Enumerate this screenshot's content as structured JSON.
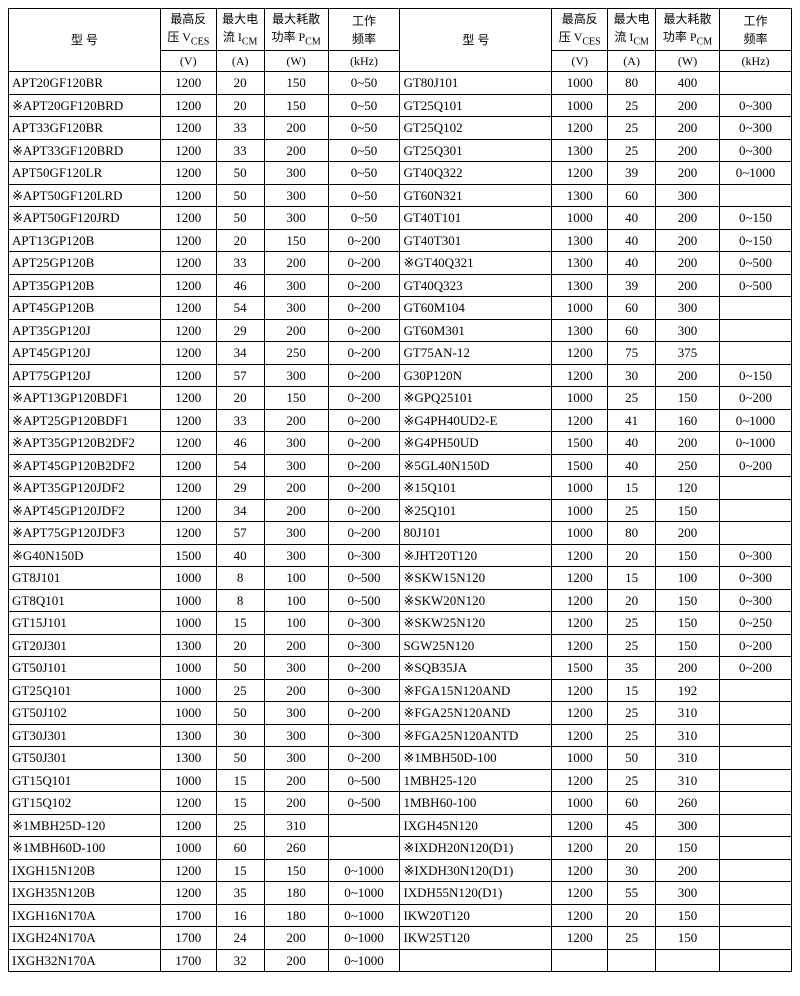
{
  "table": {
    "header": {
      "model_label": "型 号",
      "vces_line1": "最高反",
      "vces_line2": "压 V",
      "vces_sub": "CES",
      "icm_line1": "最大电",
      "icm_line2": "流 I",
      "icm_sub": "CM",
      "pcm_line1": "最大耗散",
      "pcm_line2": "功率 P",
      "pcm_sub": "CM",
      "freq_line1": "工作",
      "freq_line2": "频率",
      "unit_v": "(V)",
      "unit_a": "(A)",
      "unit_w": "(W)",
      "unit_khz": "(kHz)"
    },
    "body": [
      {
        "l": {
          "m": "APT20GF120BR",
          "v": "1200",
          "a": "20",
          "w": "150",
          "f": "0~50"
        },
        "r": {
          "m": "GT80J101",
          "v": "1000",
          "a": "80",
          "w": "400",
          "f": ""
        }
      },
      {
        "l": {
          "m": "※APT20GF120BRD",
          "v": "1200",
          "a": "20",
          "w": "150",
          "f": "0~50"
        },
        "r": {
          "m": "GT25Q101",
          "v": "1000",
          "a": "25",
          "w": "200",
          "f": "0~300"
        }
      },
      {
        "l": {
          "m": "APT33GF120BR",
          "v": "1200",
          "a": "33",
          "w": "200",
          "f": "0~50"
        },
        "r": {
          "m": "GT25Q102",
          "v": "1200",
          "a": "25",
          "w": "200",
          "f": "0~300"
        }
      },
      {
        "l": {
          "m": "※APT33GF120BRD",
          "v": "1200",
          "a": "33",
          "w": "200",
          "f": "0~50"
        },
        "r": {
          "m": "GT25Q301",
          "v": "1300",
          "a": "25",
          "w": "200",
          "f": "0~300"
        }
      },
      {
        "l": {
          "m": "APT50GF120LR",
          "v": "1200",
          "a": "50",
          "w": "300",
          "f": "0~50"
        },
        "r": {
          "m": "GT40Q322",
          "v": "1200",
          "a": "39",
          "w": "200",
          "f": "0~1000"
        }
      },
      {
        "l": {
          "m": "※APT50GF120LRD",
          "v": "1200",
          "a": "50",
          "w": "300",
          "f": "0~50"
        },
        "r": {
          "m": "GT60N321",
          "v": "1300",
          "a": "60",
          "w": "300",
          "f": ""
        }
      },
      {
        "l": {
          "m": "※APT50GF120JRD",
          "v": "1200",
          "a": "50",
          "w": "300",
          "f": "0~50"
        },
        "r": {
          "m": "GT40T101",
          "v": "1000",
          "a": "40",
          "w": "200",
          "f": "0~150"
        }
      },
      {
        "l": {
          "m": "APT13GP120B",
          "v": "1200",
          "a": "20",
          "w": "150",
          "f": "0~200"
        },
        "r": {
          "m": "GT40T301",
          "v": "1300",
          "a": "40",
          "w": "200",
          "f": "0~150"
        }
      },
      {
        "l": {
          "m": "APT25GP120B",
          "v": "1200",
          "a": "33",
          "w": "200",
          "f": "0~200"
        },
        "r": {
          "m": "※GT40Q321",
          "v": "1300",
          "a": "40",
          "w": "200",
          "f": "0~500"
        }
      },
      {
        "l": {
          "m": "APT35GP120B",
          "v": "1200",
          "a": "46",
          "w": "300",
          "f": "0~200"
        },
        "r": {
          "m": "GT40Q323",
          "v": "1300",
          "a": "39",
          "w": "200",
          "f": "0~500"
        }
      },
      {
        "l": {
          "m": "APT45GP120B",
          "v": "1200",
          "a": "54",
          "w": "300",
          "f": "0~200"
        },
        "r": {
          "m": "GT60M104",
          "v": "1000",
          "a": "60",
          "w": "300",
          "f": ""
        }
      },
      {
        "l": {
          "m": "APT35GP120J",
          "v": "1200",
          "a": "29",
          "w": "200",
          "f": "0~200"
        },
        "r": {
          "m": "GT60M301",
          "v": "1300",
          "a": "60",
          "w": "300",
          "f": ""
        }
      },
      {
        "l": {
          "m": "APT45GP120J",
          "v": "1200",
          "a": "34",
          "w": "250",
          "f": "0~200"
        },
        "r": {
          "m": "GT75AN-12",
          "v": "1200",
          "a": "75",
          "w": "375",
          "f": ""
        }
      },
      {
        "l": {
          "m": "APT75GP120J",
          "v": "1200",
          "a": "57",
          "w": "300",
          "f": "0~200"
        },
        "r": {
          "m": "G30P120N",
          "v": "1200",
          "a": "30",
          "w": "200",
          "f": "0~150"
        }
      },
      {
        "l": {
          "m": "※APT13GP120BDF1",
          "v": "1200",
          "a": "20",
          "w": "150",
          "f": "0~200"
        },
        "r": {
          "m": "※GPQ25101",
          "v": "1000",
          "a": "25",
          "w": "150",
          "f": "0~200"
        }
      },
      {
        "l": {
          "m": "※APT25GP120BDF1",
          "v": "1200",
          "a": "33",
          "w": "200",
          "f": "0~200"
        },
        "r": {
          "m": "※G4PH40UD2-E",
          "v": "1200",
          "a": "41",
          "w": "160",
          "f": "0~1000"
        }
      },
      {
        "l": {
          "m": "※APT35GP120B2DF2",
          "v": "1200",
          "a": "46",
          "w": "300",
          "f": "0~200"
        },
        "r": {
          "m": "※G4PH50UD",
          "v": "1500",
          "a": "40",
          "w": "200",
          "f": "0~1000"
        }
      },
      {
        "l": {
          "m": "※APT45GP120B2DF2",
          "v": "1200",
          "a": "54",
          "w": "300",
          "f": "0~200"
        },
        "r": {
          "m": "※5GL40N150D",
          "v": "1500",
          "a": "40",
          "w": "250",
          "f": "0~200"
        }
      },
      {
        "l": {
          "m": "※APT35GP120JDF2",
          "v": "1200",
          "a": "29",
          "w": "200",
          "f": "0~200"
        },
        "r": {
          "m": "※15Q101",
          "v": "1000",
          "a": "15",
          "w": "120",
          "f": ""
        }
      },
      {
        "l": {
          "m": "※APT45GP120JDF2",
          "v": "1200",
          "a": "34",
          "w": "200",
          "f": "0~200"
        },
        "r": {
          "m": "※25Q101",
          "v": "1000",
          "a": "25",
          "w": "150",
          "f": ""
        }
      },
      {
        "l": {
          "m": "※APT75GP120JDF3",
          "v": "1200",
          "a": "57",
          "w": "300",
          "f": "0~200"
        },
        "r": {
          "m": "80J101",
          "v": "1000",
          "a": "80",
          "w": "200",
          "f": ""
        }
      },
      {
        "l": {
          "m": "※G40N150D",
          "v": "1500",
          "a": "40",
          "w": "300",
          "f": "0~300"
        },
        "r": {
          "m": "※JHT20T120",
          "v": "1200",
          "a": "20",
          "w": "150",
          "f": "0~300"
        }
      },
      {
        "l": {
          "m": "GT8J101",
          "v": "1000",
          "a": "8",
          "w": "100",
          "f": "0~500"
        },
        "r": {
          "m": "※SKW15N120",
          "v": "1200",
          "a": "15",
          "w": "100",
          "f": "0~300"
        }
      },
      {
        "l": {
          "m": "GT8Q101",
          "v": "1000",
          "a": "8",
          "w": "100",
          "f": "0~500"
        },
        "r": {
          "m": "※SKW20N120",
          "v": "1200",
          "a": "20",
          "w": "150",
          "f": "0~300"
        }
      },
      {
        "l": {
          "m": "GT15J101",
          "v": "1000",
          "a": "15",
          "w": "100",
          "f": "0~300"
        },
        "r": {
          "m": "※SKW25N120",
          "v": "1200",
          "a": "25",
          "w": "150",
          "f": "0~250"
        }
      },
      {
        "l": {
          "m": "GT20J301",
          "v": "1300",
          "a": "20",
          "w": "200",
          "f": "0~300"
        },
        "r": {
          "m": "SGW25N120",
          "v": "1200",
          "a": "25",
          "w": "150",
          "f": "0~200"
        }
      },
      {
        "l": {
          "m": "GT50J101",
          "v": "1000",
          "a": "50",
          "w": "300",
          "f": "0~200"
        },
        "r": {
          "m": "※SQB35JA",
          "v": "1500",
          "a": "35",
          "w": "200",
          "f": "0~200"
        }
      },
      {
        "l": {
          "m": "GT25Q101",
          "v": "1000",
          "a": "25",
          "w": "200",
          "f": "0~300"
        },
        "r": {
          "m": "※FGA15N120AND",
          "v": "1200",
          "a": "15",
          "w": "192",
          "f": ""
        }
      },
      {
        "l": {
          "m": "GT50J102",
          "v": "1000",
          "a": "50",
          "w": "300",
          "f": "0~200"
        },
        "r": {
          "m": "※FGA25N120AND",
          "v": "1200",
          "a": "25",
          "w": "310",
          "f": ""
        }
      },
      {
        "l": {
          "m": "GT30J301",
          "v": "1300",
          "a": "30",
          "w": "300",
          "f": "0~300"
        },
        "r": {
          "m": "※FGA25N120ANTD",
          "v": "1200",
          "a": "25",
          "w": "310",
          "f": ""
        }
      },
      {
        "l": {
          "m": "GT50J301",
          "v": "1300",
          "a": "50",
          "w": "300",
          "f": "0~200"
        },
        "r": {
          "m": "※1MBH50D-100",
          "v": "1000",
          "a": "50",
          "w": "310",
          "f": ""
        }
      },
      {
        "l": {
          "m": "GT15Q101",
          "v": "1000",
          "a": "15",
          "w": "200",
          "f": "0~500"
        },
        "r": {
          "m": "1MBH25-120",
          "v": "1200",
          "a": "25",
          "w": "310",
          "f": ""
        }
      },
      {
        "l": {
          "m": "GT15Q102",
          "v": "1200",
          "a": "15",
          "w": "200",
          "f": "0~500"
        },
        "r": {
          "m": "1MBH60-100",
          "v": "1000",
          "a": "60",
          "w": "260",
          "f": ""
        }
      },
      {
        "l": {
          "m": "※1MBH25D-120",
          "v": "1200",
          "a": "25",
          "w": "310",
          "f": ""
        },
        "r": {
          "m": "IXGH45N120",
          "v": "1200",
          "a": "45",
          "w": "300",
          "f": ""
        }
      },
      {
        "l": {
          "m": "※1MBH60D-100",
          "v": "1000",
          "a": "60",
          "w": "260",
          "f": ""
        },
        "r": {
          "m": "※IXDH20N120(D1)",
          "v": "1200",
          "a": "20",
          "w": "150",
          "f": ""
        }
      },
      {
        "l": {
          "m": "IXGH15N120B",
          "v": "1200",
          "a": "15",
          "w": "150",
          "f": "0~1000"
        },
        "r": {
          "m": "※IXDH30N120(D1)",
          "v": "1200",
          "a": "30",
          "w": "200",
          "f": ""
        }
      },
      {
        "l": {
          "m": "IXGH35N120B",
          "v": "1200",
          "a": "35",
          "w": "180",
          "f": "0~1000"
        },
        "r": {
          "m": "IXDH55N120(D1)",
          "v": "1200",
          "a": "55",
          "w": "300",
          "f": ""
        }
      },
      {
        "l": {
          "m": "IXGH16N170A",
          "v": "1700",
          "a": "16",
          "w": "180",
          "f": "0~1000"
        },
        "r": {
          "m": "IKW20T120",
          "v": "1200",
          "a": "20",
          "w": "150",
          "f": ""
        }
      },
      {
        "l": {
          "m": "IXGH24N170A",
          "v": "1700",
          "a": "24",
          "w": "200",
          "f": "0~1000"
        },
        "r": {
          "m": "IKW25T120",
          "v": "1200",
          "a": "25",
          "w": "150",
          "f": ""
        }
      },
      {
        "l": {
          "m": "IXGH32N170A",
          "v": "1700",
          "a": "32",
          "w": "200",
          "f": "0~1000"
        },
        "r": null
      }
    ]
  }
}
